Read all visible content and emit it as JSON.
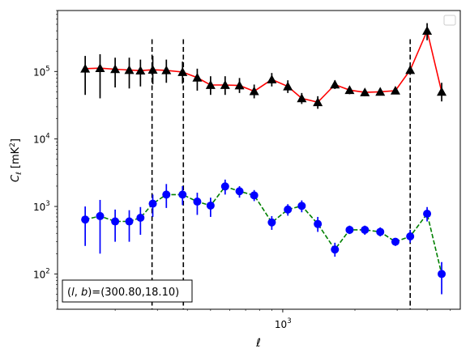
{
  "chart_data": {
    "type": "line",
    "xlabel": "ℓ",
    "ylabel": "C_ℓ  [mK²]",
    "xscale": "log",
    "yscale": "log",
    "xlim": [
      115,
      5500
    ],
    "ylim": [
      30,
      800000
    ],
    "x_tick_labels": [
      {
        "value": 1000,
        "label": "10",
        "exp": "3"
      }
    ],
    "y_tick_labels": [
      {
        "value": 100,
        "label": "10",
        "exp": "2"
      },
      {
        "value": 1000,
        "label": "10",
        "exp": "3"
      },
      {
        "value": 10000,
        "label": "10",
        "exp": "4"
      },
      {
        "value": 100000,
        "label": "10",
        "exp": "5"
      }
    ],
    "legend": {
      "position": "top-right",
      "entries": []
    },
    "vertical_lines": [
      {
        "x": 285,
        "y_top": 300000,
        "y_bottom": 30,
        "style": "dashed"
      },
      {
        "x": 385,
        "y_top": 300000,
        "y_bottom": 30,
        "style": "dashed"
      },
      {
        "x": 3400,
        "y_top": 300000,
        "y_bottom": 30,
        "style": "dashed"
      }
    ],
    "annotation": {
      "text": "(l, b)=(300.80,18.10)",
      "position": "bottom-left"
    },
    "series": [
      {
        "marker": "triangle",
        "marker_color": "#000000",
        "line_color": "#ff0000",
        "line_style": "solid",
        "points": [
          {
            "x": 150,
            "y": 110000,
            "lo": 45000,
            "hi": 170000
          },
          {
            "x": 173,
            "y": 112000,
            "lo": 40000,
            "hi": 180000
          },
          {
            "x": 200,
            "y": 108000,
            "lo": 58000,
            "hi": 160000
          },
          {
            "x": 229,
            "y": 105000,
            "lo": 56000,
            "hi": 160000
          },
          {
            "x": 255,
            "y": 103000,
            "lo": 60000,
            "hi": 150000
          },
          {
            "x": 287,
            "y": 106000,
            "lo": 65000,
            "hi": 170000
          },
          {
            "x": 327,
            "y": 104000,
            "lo": 68000,
            "hi": 150000
          },
          {
            "x": 382,
            "y": 98000,
            "lo": 66000,
            "hi": 140000
          },
          {
            "x": 440,
            "y": 81000,
            "lo": 52000,
            "hi": 110000
          },
          {
            "x": 500,
            "y": 63000,
            "lo": 45000,
            "hi": 85000
          },
          {
            "x": 575,
            "y": 63000,
            "lo": 45000,
            "hi": 85000
          },
          {
            "x": 660,
            "y": 62000,
            "lo": 48000,
            "hi": 80000
          },
          {
            "x": 760,
            "y": 51000,
            "lo": 40000,
            "hi": 64000
          },
          {
            "x": 900,
            "y": 76000,
            "lo": 60000,
            "hi": 95000
          },
          {
            "x": 1050,
            "y": 60000,
            "lo": 48000,
            "hi": 74000
          },
          {
            "x": 1200,
            "y": 40000,
            "lo": 33000,
            "hi": 48000
          },
          {
            "x": 1400,
            "y": 35000,
            "lo": 28000,
            "hi": 43000
          },
          {
            "x": 1650,
            "y": 64000,
            "lo": 55000,
            "hi": 74000
          },
          {
            "x": 1900,
            "y": 53000,
            "lo": 46000,
            "hi": 60000
          },
          {
            "x": 2200,
            "y": 49000,
            "lo": 43000,
            "hi": 55000
          },
          {
            "x": 2550,
            "y": 50000,
            "lo": 44000,
            "hi": 56000
          },
          {
            "x": 2950,
            "y": 52000,
            "lo": 46000,
            "hi": 58000
          },
          {
            "x": 3400,
            "y": 105000,
            "lo": 92000,
            "hi": 120000
          },
          {
            "x": 4000,
            "y": 400000,
            "lo": 290000,
            "hi": 520000
          },
          {
            "x": 4600,
            "y": 50000,
            "lo": 36000,
            "hi": 68000
          }
        ]
      },
      {
        "marker": "circle",
        "marker_color": "#0000ff",
        "line_color": "#008000",
        "line_style": "dashed",
        "points": [
          {
            "x": 150,
            "y": 640,
            "lo": 260,
            "hi": 1000
          },
          {
            "x": 173,
            "y": 720,
            "lo": 200,
            "hi": 1250
          },
          {
            "x": 200,
            "y": 600,
            "lo": 300,
            "hi": 900
          },
          {
            "x": 229,
            "y": 600,
            "lo": 300,
            "hi": 880
          },
          {
            "x": 255,
            "y": 680,
            "lo": 380,
            "hi": 980
          },
          {
            "x": 287,
            "y": 1100,
            "lo": 700,
            "hi": 1500
          },
          {
            "x": 327,
            "y": 1500,
            "lo": 950,
            "hi": 2150
          },
          {
            "x": 382,
            "y": 1500,
            "lo": 1050,
            "hi": 2000
          },
          {
            "x": 440,
            "y": 1180,
            "lo": 750,
            "hi": 1600
          },
          {
            "x": 500,
            "y": 1030,
            "lo": 700,
            "hi": 1350
          },
          {
            "x": 575,
            "y": 1980,
            "lo": 1500,
            "hi": 2500
          },
          {
            "x": 660,
            "y": 1680,
            "lo": 1350,
            "hi": 2000
          },
          {
            "x": 760,
            "y": 1460,
            "lo": 1200,
            "hi": 1750
          },
          {
            "x": 900,
            "y": 580,
            "lo": 450,
            "hi": 720
          },
          {
            "x": 1050,
            "y": 900,
            "lo": 730,
            "hi": 1080
          },
          {
            "x": 1200,
            "y": 1020,
            "lo": 820,
            "hi": 1230
          },
          {
            "x": 1400,
            "y": 550,
            "lo": 420,
            "hi": 700
          },
          {
            "x": 1650,
            "y": 230,
            "lo": 180,
            "hi": 290
          },
          {
            "x": 1900,
            "y": 450,
            "lo": 390,
            "hi": 520
          },
          {
            "x": 2200,
            "y": 450,
            "lo": 380,
            "hi": 520
          },
          {
            "x": 2550,
            "y": 420,
            "lo": 360,
            "hi": 490
          },
          {
            "x": 2950,
            "y": 300,
            "lo": 260,
            "hi": 340
          },
          {
            "x": 3400,
            "y": 360,
            "lo": 290,
            "hi": 450
          },
          {
            "x": 4000,
            "y": 780,
            "lo": 600,
            "hi": 980
          },
          {
            "x": 4600,
            "y": 100,
            "lo": 50,
            "hi": 150
          }
        ]
      }
    ]
  }
}
